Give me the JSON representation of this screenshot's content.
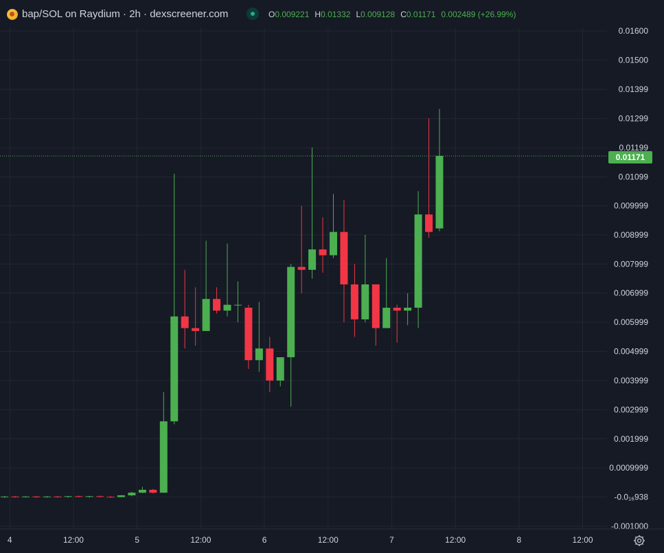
{
  "header": {
    "symbol_title": "bap/SOL on Raydium · 2h · dexscreener.com",
    "ohlc": {
      "o_label": "O",
      "o_value": "0.009221",
      "h_label": "H",
      "h_value": "0.01332",
      "l_label": "L",
      "l_value": "0.009128",
      "c_label": "C",
      "c_value": "0.01171",
      "change": "0.002489 (+26.99%)"
    }
  },
  "colors": {
    "background": "#161a25",
    "up": "#4caf50",
    "down": "#f23645",
    "grid": "#232733",
    "text": "#d1d4dc"
  },
  "last_price_tag": "0.01171",
  "price_axis": {
    "ticks": [
      {
        "value": 0.016,
        "label": "0.01600"
      },
      {
        "value": 0.015,
        "label": "0.01500"
      },
      {
        "value": 0.01399,
        "label": "0.01399"
      },
      {
        "value": 0.01299,
        "label": "0.01299"
      },
      {
        "value": 0.01199,
        "label": "0.01199"
      },
      {
        "value": 0.01099,
        "label": "0.01099"
      },
      {
        "value": 0.009999,
        "label": "0.009999"
      },
      {
        "value": 0.008999,
        "label": "0.008999"
      },
      {
        "value": 0.007999,
        "label": "0.007999"
      },
      {
        "value": 0.006999,
        "label": "0.006999"
      },
      {
        "value": 0.005999,
        "label": "0.005999"
      },
      {
        "value": 0.004999,
        "label": "0.004999"
      },
      {
        "value": 0.003999,
        "label": "0.003999"
      },
      {
        "value": 0.002999,
        "label": "0.002999"
      },
      {
        "value": 0.001999,
        "label": "0.001999"
      },
      {
        "value": 0.0009999,
        "label": "0.0009999"
      },
      {
        "value": 0.0,
        "label": "-0.0₁₆938"
      },
      {
        "value": -0.001,
        "label": "-0.001000"
      }
    ]
  },
  "time_axis": {
    "ticks": [
      {
        "index": -0.5,
        "label": "4"
      },
      {
        "index": 5.5,
        "label": "12:00"
      },
      {
        "index": 11.5,
        "label": "5"
      },
      {
        "index": 17.5,
        "label": "12:00"
      },
      {
        "index": 23.5,
        "label": "6"
      },
      {
        "index": 29.5,
        "label": "12:00"
      },
      {
        "index": 35.5,
        "label": "7"
      },
      {
        "index": 41.5,
        "label": "12:00"
      },
      {
        "index": 47.5,
        "label": "8"
      },
      {
        "index": 53.5,
        "label": "12:00"
      }
    ]
  },
  "chart_data": {
    "type": "candlestick",
    "title": "bap/SOL on Raydium · 2h · dexscreener.com",
    "ylim": [
      -0.001,
      0.0165
    ],
    "grid": true,
    "last_price": 0.01171,
    "candles": [
      {
        "i": -1,
        "o": 1e-05,
        "h": 3e-05,
        "l": -3e-05,
        "c": 2e-05
      },
      {
        "i": 0,
        "o": 2e-05,
        "h": 4e-05,
        "l": -2e-05,
        "c": 1e-05
      },
      {
        "i": 1,
        "o": 1e-05,
        "h": 3e-05,
        "l": -2e-05,
        "c": 2e-05
      },
      {
        "i": 2,
        "o": 2e-05,
        "h": 4e-05,
        "l": -2e-05,
        "c": 0.0
      },
      {
        "i": 3,
        "o": 0.0,
        "h": 4e-05,
        "l": -2e-05,
        "c": 2e-05
      },
      {
        "i": 4,
        "o": 2e-05,
        "h": 4e-05,
        "l": -2e-05,
        "c": 1e-05
      },
      {
        "i": 5,
        "o": 1e-05,
        "h": 4e-05,
        "l": -2e-05,
        "c": 3e-05
      },
      {
        "i": 6,
        "o": 3e-05,
        "h": 5e-05,
        "l": -1e-05,
        "c": 2e-05
      },
      {
        "i": 7,
        "o": 2e-05,
        "h": 4e-05,
        "l": -2e-05,
        "c": 3e-05
      },
      {
        "i": 8,
        "o": 3e-05,
        "h": 5e-05,
        "l": -1e-05,
        "c": 1e-05
      },
      {
        "i": 9,
        "o": 1e-05,
        "h": 4e-05,
        "l": -2e-05,
        "c": 0.0
      },
      {
        "i": 10,
        "o": 0.0,
        "h": 7e-05,
        "l": -1e-05,
        "c": 6e-05
      },
      {
        "i": 11,
        "o": 6e-05,
        "h": 0.00018,
        "l": 3e-05,
        "c": 0.00015
      },
      {
        "i": 12,
        "o": 0.00015,
        "h": 0.00035,
        "l": 0.00013,
        "c": 0.00025
      },
      {
        "i": 13,
        "o": 0.00025,
        "h": 0.00028,
        "l": 0.00012,
        "c": 0.00015
      },
      {
        "i": 14,
        "o": 0.00015,
        "h": 0.0036,
        "l": 0.00014,
        "c": 0.0026
      },
      {
        "i": 15,
        "o": 0.0026,
        "h": 0.0111,
        "l": 0.0025,
        "c": 0.0062
      },
      {
        "i": 16,
        "o": 0.0062,
        "h": 0.0078,
        "l": 0.0051,
        "c": 0.0058
      },
      {
        "i": 17,
        "o": 0.0058,
        "h": 0.0072,
        "l": 0.0052,
        "c": 0.0057
      },
      {
        "i": 18,
        "o": 0.0057,
        "h": 0.0088,
        "l": 0.0057,
        "c": 0.0068
      },
      {
        "i": 19,
        "o": 0.0068,
        "h": 0.0072,
        "l": 0.0063,
        "c": 0.0064
      },
      {
        "i": 20,
        "o": 0.0064,
        "h": 0.0087,
        "l": 0.0062,
        "c": 0.0066
      },
      {
        "i": 21,
        "o": 0.0066,
        "h": 0.0074,
        "l": 0.006,
        "c": 0.0066
      },
      {
        "i": 22,
        "o": 0.0065,
        "h": 0.0066,
        "l": 0.0044,
        "c": 0.0047
      },
      {
        "i": 23,
        "o": 0.0047,
        "h": 0.0067,
        "l": 0.0043,
        "c": 0.0051
      },
      {
        "i": 24,
        "o": 0.0051,
        "h": 0.0055,
        "l": 0.0036,
        "c": 0.004
      },
      {
        "i": 25,
        "o": 0.004,
        "h": 0.0047,
        "l": 0.0038,
        "c": 0.0048
      },
      {
        "i": 26,
        "o": 0.0048,
        "h": 0.008,
        "l": 0.0031,
        "c": 0.0079
      },
      {
        "i": 27,
        "o": 0.0079,
        "h": 0.01,
        "l": 0.007,
        "c": 0.0078
      },
      {
        "i": 28,
        "o": 0.0078,
        "h": 0.012,
        "l": 0.0075,
        "c": 0.0085
      },
      {
        "i": 29,
        "o": 0.0085,
        "h": 0.0096,
        "l": 0.0077,
        "c": 0.0083
      },
      {
        "i": 30,
        "o": 0.0083,
        "h": 0.0104,
        "l": 0.0082,
        "c": 0.0091
      },
      {
        "i": 31,
        "o": 0.0091,
        "h": 0.0102,
        "l": 0.006,
        "c": 0.0073
      },
      {
        "i": 32,
        "o": 0.0073,
        "h": 0.008,
        "l": 0.0055,
        "c": 0.0061
      },
      {
        "i": 33,
        "o": 0.0061,
        "h": 0.009,
        "l": 0.006,
        "c": 0.0073
      },
      {
        "i": 34,
        "o": 0.0073,
        "h": 0.0073,
        "l": 0.0052,
        "c": 0.0058
      },
      {
        "i": 35,
        "o": 0.0058,
        "h": 0.0082,
        "l": 0.0058,
        "c": 0.0065
      },
      {
        "i": 36,
        "o": 0.0065,
        "h": 0.0066,
        "l": 0.0053,
        "c": 0.0064
      },
      {
        "i": 37,
        "o": 0.0064,
        "h": 0.007,
        "l": 0.0059,
        "c": 0.0065
      },
      {
        "i": 38,
        "o": 0.0065,
        "h": 0.0105,
        "l": 0.0058,
        "c": 0.0097
      },
      {
        "i": 39,
        "o": 0.0097,
        "h": 0.013,
        "l": 0.0089,
        "c": 0.0091
      },
      {
        "i": 40,
        "o": 0.009221,
        "h": 0.01332,
        "l": 0.009128,
        "c": 0.01171
      }
    ]
  }
}
